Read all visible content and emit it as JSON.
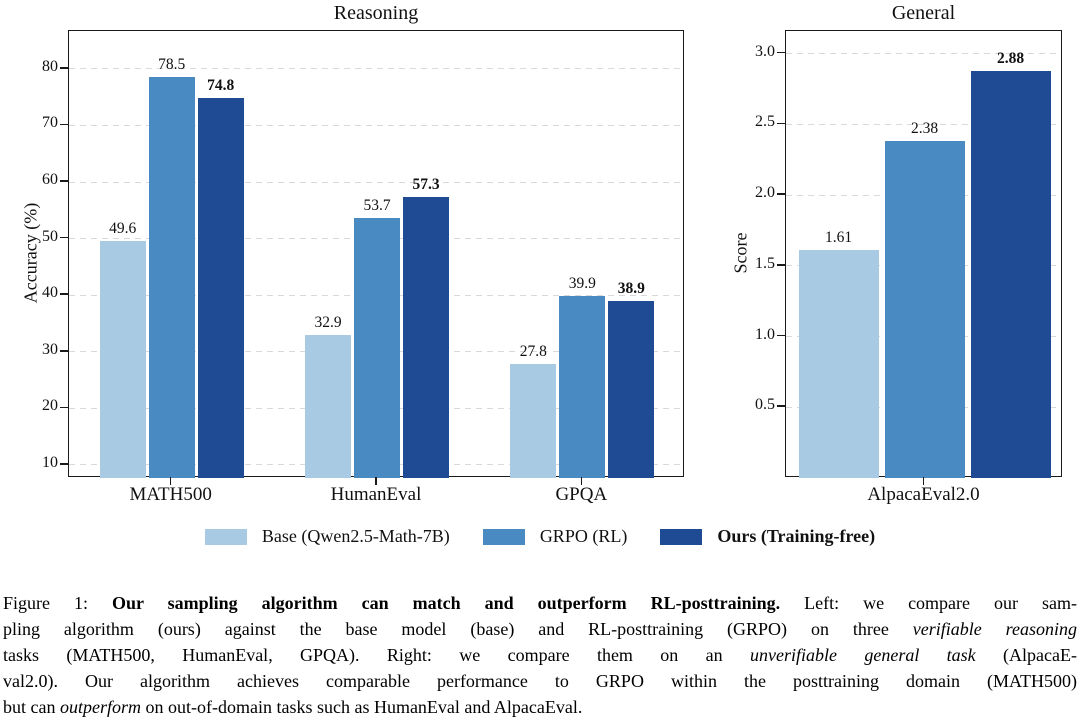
{
  "colors": {
    "base_blue": "#a8cbe3",
    "grpo_blue": "#4a8ac2",
    "ours_blue": "#1f4b94",
    "grid": "#d8d8d8",
    "frame": "#1a1a1a",
    "text": "#111111"
  },
  "chart_data": [
    {
      "type": "bar",
      "title": "Reasoning",
      "xlabel": "",
      "ylabel": "Accuracy (%)",
      "categories": [
        "MATH500",
        "HumanEval",
        "GPQA"
      ],
      "series": [
        {
          "name": "Base (Qwen2.5-Math-7B)",
          "color": "#a8cbe3",
          "values": [
            49.6,
            32.9,
            27.8
          ],
          "labels": [
            "49.6",
            "32.9",
            "27.8"
          ],
          "bold_labels": false
        },
        {
          "name": "GRPO (RL)",
          "color": "#4a8ac2",
          "values": [
            78.5,
            53.7,
            39.9
          ],
          "labels": [
            "78.5",
            "53.7",
            "39.9"
          ],
          "bold_labels": false
        },
        {
          "name": "Ours (Training-free)",
          "color": "#1f4b94",
          "values": [
            74.8,
            57.3,
            38.9
          ],
          "labels": [
            "74.8",
            "57.3",
            "38.9"
          ],
          "bold_labels": true
        }
      ],
      "yticks": [
        10,
        20,
        30,
        40,
        50,
        60,
        70,
        80
      ],
      "ytick_labels": [
        "10",
        "20",
        "30",
        "40",
        "50",
        "60",
        "70",
        "80"
      ],
      "ylim": [
        7.7,
        86.7
      ],
      "grid": "horizontal dashed",
      "legend_position": "below figure"
    },
    {
      "type": "bar",
      "title": "General",
      "xlabel": "",
      "ylabel": "Score",
      "categories": [
        "AlpacaEval2.0"
      ],
      "series": [
        {
          "name": "Base (Qwen2.5-Math-7B)",
          "color": "#a8cbe3",
          "values": [
            1.61
          ],
          "labels": [
            "1.61"
          ],
          "bold_labels": false
        },
        {
          "name": "GRPO (RL)",
          "color": "#4a8ac2",
          "values": [
            2.38
          ],
          "labels": [
            "2.38"
          ],
          "bold_labels": false
        },
        {
          "name": "Ours (Training-free)",
          "color": "#1f4b94",
          "values": [
            2.88
          ],
          "labels": [
            "2.88"
          ],
          "bold_labels": true
        }
      ],
      "yticks": [
        0.5,
        1.0,
        1.5,
        2.0,
        2.5,
        3.0
      ],
      "ytick_labels": [
        "0.5",
        "1.0",
        "1.5",
        "2.0",
        "2.5",
        "3.0"
      ],
      "ylim": [
        0.0,
        3.16
      ],
      "grid": "horizontal dashed",
      "legend_position": "below figure"
    }
  ],
  "legend": {
    "items": [
      {
        "label": "Base (Qwen2.5-Math-7B)",
        "color": "#a8cbe3",
        "bold": false
      },
      {
        "label": "GRPO (RL)",
        "color": "#4a8ac2",
        "bold": false
      },
      {
        "label": "Ours (Training-free)",
        "color": "#1f4b94",
        "bold": true
      }
    ]
  },
  "caption": {
    "lines": [
      [
        {
          "t": "Figure 1: ",
          "s": "n"
        },
        {
          "t": "Our sampling algorithm can match and outperform RL-posttraining.",
          "s": "b"
        },
        {
          "t": " Left: we compare our sam-",
          "s": "n"
        }
      ],
      [
        {
          "t": "pling algorithm (ours) against the base model (base) and RL-posttraining (GRPO) on three ",
          "s": "n"
        },
        {
          "t": "verifiable reasoning",
          "s": "i"
        }
      ],
      [
        {
          "t": "tasks (MATH500, HumanEval, GPQA). Right: we compare them on an ",
          "s": "n"
        },
        {
          "t": "unverifiable general task",
          "s": "i"
        },
        {
          "t": " (AlpacaE-",
          "s": "n"
        }
      ],
      [
        {
          "t": "val2.0). Our algorithm achieves comparable performance to GRPO within the posttraining domain (MATH500)",
          "s": "n"
        }
      ],
      [
        {
          "t": "but can ",
          "s": "n"
        },
        {
          "t": "outperform",
          "s": "i"
        },
        {
          "t": " on out-of-domain tasks such as HumanEval and AlpacaEval.",
          "s": "n"
        }
      ]
    ]
  }
}
